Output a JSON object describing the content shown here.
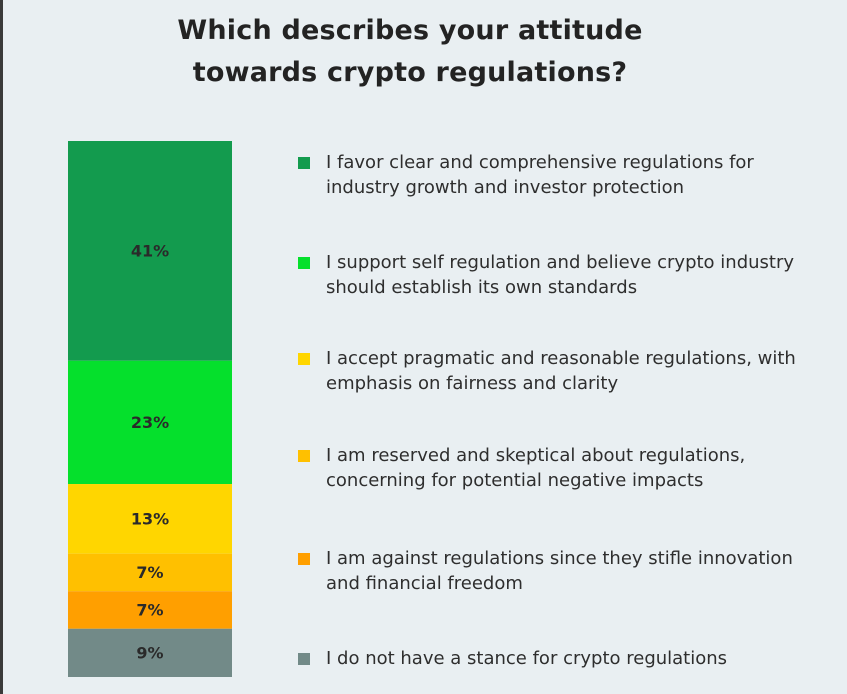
{
  "chart_data": {
    "type": "bar",
    "stacked": true,
    "orientation": "vertical",
    "title": "Which describes your attitude\ntowards crypto regulations?",
    "categories": [
      "I favor clear and comprehensive regulations for industry growth and investor protection",
      "I support self regulation and believe crypto industry should establish its own standards",
      "I accept pragmatic and reasonable regulations, with emphasis on fairness and clarity",
      "I am reserved and skeptical about regulations, concerning for potential negative impacts",
      "I am against regulations since they stifle innovation and financial freedom",
      "I do not have a stance for crypto regulations"
    ],
    "values": [
      41,
      23,
      13,
      7,
      7,
      9
    ],
    "data_labels": [
      "41%",
      "23%",
      "13%",
      "7%",
      "7%",
      "9%"
    ],
    "colors": [
      "#139b4e",
      "#05e02c",
      "#ffd600",
      "#ffc000",
      "#ff9f00",
      "#728a88"
    ],
    "legend_position": "right",
    "grid": false
  }
}
